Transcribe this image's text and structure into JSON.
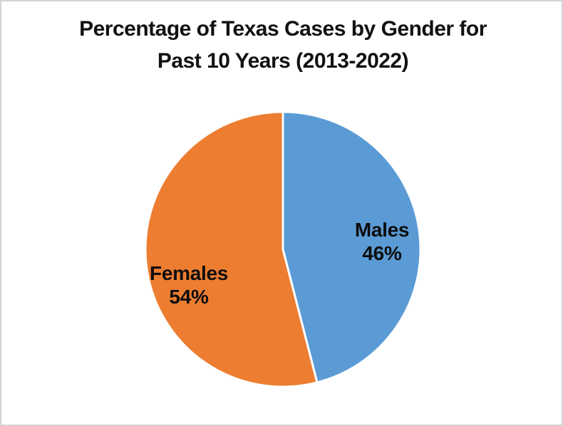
{
  "chart_data": {
    "type": "pie",
    "title": "Percentage of Texas Cases by Gender for Past 10 Years (2013-2022)",
    "title_lines": [
      "Percentage of Texas Cases by Gender for",
      "Past 10 Years (2013-2022)"
    ],
    "slices": [
      {
        "label": "Males",
        "value": 46,
        "value_label": "46%",
        "color": "#5B9BD5"
      },
      {
        "label": "Females",
        "value": 54,
        "value_label": "54%",
        "color": "#ED7D31"
      }
    ],
    "start_angle_deg": 0,
    "direction": "clockwise",
    "legend": "none",
    "slice_border_color": "#FFFFFF",
    "background_color": "#FFFFFF",
    "frame_border_color": "#D3D3D3",
    "text_color": "#0D0D0D"
  }
}
